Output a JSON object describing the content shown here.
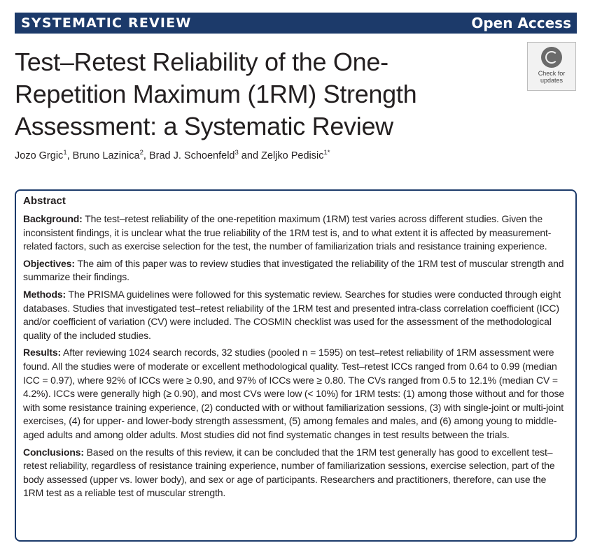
{
  "banner": {
    "left": "SYSTEMATIC REVIEW",
    "right": "Open Access"
  },
  "title": "Test–Retest Reliability of the One-Repetition Maximum (1RM) Strength Assessment: a Systematic Review",
  "authors": [
    {
      "name": "Jozo Grgic",
      "aff": "1",
      "sep": ", "
    },
    {
      "name": "Bruno Lazinica",
      "aff": "2",
      "sep": ", "
    },
    {
      "name": "Brad J. Schoenfeld",
      "aff": "3",
      "sep": " and "
    },
    {
      "name": "Zeljko Pedisic",
      "aff": "1*",
      "sep": ""
    }
  ],
  "check_updates": {
    "line1": "Check for",
    "line2": "updates"
  },
  "abstract": {
    "heading": "Abstract",
    "sections": [
      {
        "label": "Background:",
        "text": "The test–retest reliability of the one-repetition maximum (1RM) test varies across different studies. Given the inconsistent findings, it is unclear what the true reliability of the 1RM test is, and to what extent it is affected by measurement-related factors, such as exercise selection for the test, the number of familiarization trials and resistance training experience."
      },
      {
        "label": "Objectives:",
        "text": "The aim of this paper was to review studies that investigated the reliability of the 1RM test of muscular strength and summarize their findings."
      },
      {
        "label": "Methods:",
        "text": "The PRISMA guidelines were followed for this systematic review. Searches for studies were conducted through eight databases. Studies that investigated test–retest reliability of the 1RM test and presented intra-class correlation coefficient (ICC) and/or coefficient of variation (CV) were included. The COSMIN checklist was used for the assessment of the methodological quality of the included studies."
      },
      {
        "label": "Results:",
        "text": "After reviewing 1024 search records, 32 studies (pooled n = 1595) on test–retest reliability of 1RM assessment were found. All the studies were of moderate or excellent methodological quality. Test–retest ICCs ranged from 0.64 to 0.99 (median ICC = 0.97), where 92% of ICCs were ≥ 0.90, and 97% of ICCs were ≥ 0.80. The CVs ranged from 0.5 to 12.1% (median CV = 4.2%). ICCs were generally high (≥ 0.90), and most CVs were low (< 10%) for 1RM tests: (1) among those without and for those with some resistance training experience, (2) conducted with or without familiarization sessions, (3) with single-joint or multi-joint exercises, (4) for upper- and lower-body strength assessment, (5) among females and males, and (6) among young to middle-aged adults and among older adults. Most studies did not find systematic changes in test results between the trials."
      },
      {
        "label": "Conclusions:",
        "text": "Based on the results of this review, it can be concluded that the 1RM test generally has good to excellent test–retest reliability, regardless of resistance training experience, number of familiarization sessions, exercise selection, part of the body assessed (upper vs. lower body), and sex or age of participants. Researchers and practitioners, therefore, can use the 1RM test as a reliable test of muscular strength."
      }
    ]
  },
  "colors": {
    "banner_bg": "#1c3a6a",
    "text": "#231f20",
    "box_border": "#1c3a6a"
  },
  "icons": {
    "check_updates": "crossmark-icon"
  }
}
